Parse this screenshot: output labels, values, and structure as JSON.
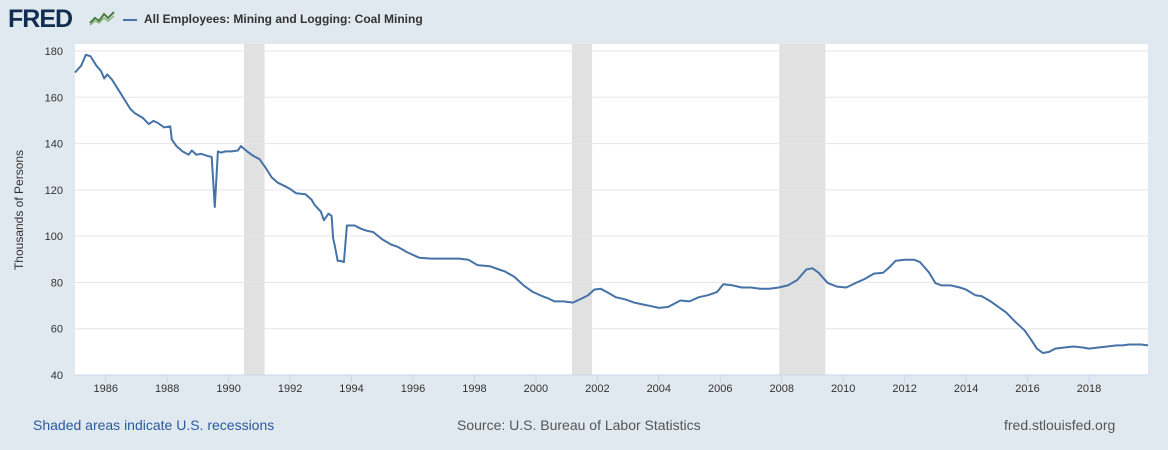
{
  "header": {
    "logo_text": "FRED",
    "series_title": "All Employees: Mining and Logging: Coal Mining"
  },
  "footer": {
    "recession_note": "Shaded areas indicate U.S. recessions",
    "source": "Source: U.S. Bureau of Labor Statistics",
    "site": "fred.stlouisfed.org"
  },
  "colors": {
    "line": "#4572a7",
    "recession": "#e1e1e1",
    "background": "#e1e9f0",
    "plot_bg": "#ffffff",
    "grid": "#e6e6e6"
  },
  "chart_data": {
    "type": "line",
    "title": "All Employees: Mining and Logging: Coal Mining",
    "xlabel": "",
    "ylabel": "Thousands of Persons",
    "xlim": [
      1985.0,
      2019.92
    ],
    "ylim": [
      40,
      180
    ],
    "y_ticks": [
      40,
      60,
      80,
      100,
      120,
      140,
      160,
      180
    ],
    "x_ticks": [
      1986,
      1988,
      1990,
      1992,
      1994,
      1996,
      1998,
      2000,
      2002,
      2004,
      2006,
      2008,
      2010,
      2012,
      2014,
      2016,
      2018
    ],
    "grid": true,
    "recessions": [
      [
        1990.5,
        1991.17
      ],
      [
        2001.17,
        2001.83
      ],
      [
        2007.92,
        2009.42
      ]
    ],
    "series": [
      {
        "name": "All Employees: Mining and Logging: Coal Mining",
        "x": [
          1985.0,
          1985.2,
          1985.35,
          1985.5,
          1985.7,
          1985.85,
          1985.95,
          1986.05,
          1986.2,
          1986.4,
          1986.6,
          1986.8,
          1986.95,
          1987.2,
          1987.4,
          1987.55,
          1987.7,
          1987.9,
          1988.1,
          1988.15,
          1988.3,
          1988.5,
          1988.7,
          1988.8,
          1988.95,
          1989.1,
          1989.3,
          1989.45,
          1989.55,
          1989.65,
          1989.75,
          1989.9,
          1990.1,
          1990.3,
          1990.4,
          1990.6,
          1990.8,
          1991.0,
          1991.2,
          1991.4,
          1991.6,
          1991.8,
          1992.0,
          1992.2,
          1992.5,
          1992.7,
          1992.8,
          1993.0,
          1993.1,
          1993.25,
          1993.35,
          1993.4,
          1993.45,
          1993.55,
          1993.65,
          1993.75,
          1993.85,
          1993.95,
          1994.1,
          1994.3,
          1994.5,
          1994.7,
          1995.0,
          1995.3,
          1995.5,
          1995.8,
          1996.2,
          1996.6,
          1997.0,
          1997.5,
          1997.8,
          1998.1,
          1998.5,
          1998.8,
          1999.0,
          1999.3,
          1999.6,
          1999.9,
          2000.2,
          2000.4,
          2000.6,
          2000.9,
          2001.2,
          2001.5,
          2001.7,
          2001.9,
          2002.1,
          2002.3,
          2002.6,
          2002.9,
          2003.2,
          2003.5,
          2003.7,
          2004.0,
          2004.3,
          2004.5,
          2004.7,
          2005.0,
          2005.3,
          2005.6,
          2005.9,
          2006.1,
          2006.4,
          2006.7,
          2007.0,
          2007.3,
          2007.6,
          2007.9,
          2008.2,
          2008.5,
          2008.8,
          2009.0,
          2009.2,
          2009.5,
          2009.8,
          2010.1,
          2010.4,
          2010.7,
          2011.0,
          2011.3,
          2011.5,
          2011.7,
          2012.0,
          2012.3,
          2012.5,
          2012.8,
          2013.0,
          2013.2,
          2013.5,
          2013.8,
          2014.0,
          2014.3,
          2014.5,
          2014.8,
          2015.0,
          2015.3,
          2015.6,
          2015.9,
          2016.1,
          2016.3,
          2016.5,
          2016.7,
          2016.9,
          2017.2,
          2017.5,
          2017.8,
          2018.0,
          2018.3,
          2018.6,
          2018.9,
          2019.1,
          2019.3,
          2019.5,
          2019.7,
          2019.92
        ],
        "values": [
          170.7,
          173.6,
          178.3,
          177.8,
          173.6,
          171.3,
          168.1,
          169.9,
          167.7,
          163.5,
          159.2,
          155.0,
          153.1,
          151.2,
          148.4,
          149.8,
          148.9,
          147.0,
          147.4,
          141.7,
          138.9,
          136.6,
          135.2,
          137.0,
          135.2,
          135.6,
          134.7,
          134.2,
          112.6,
          136.6,
          136.1,
          136.6,
          136.6,
          137.0,
          138.9,
          136.6,
          134.7,
          133.3,
          129.6,
          125.4,
          123.1,
          121.8,
          120.4,
          118.5,
          118.1,
          115.7,
          113.4,
          110.6,
          106.9,
          109.7,
          108.8,
          99.1,
          96.3,
          89.3,
          89.3,
          88.8,
          104.6,
          104.6,
          104.6,
          103.2,
          102.3,
          101.8,
          98.6,
          96.3,
          95.4,
          93.1,
          90.7,
          90.3,
          90.3,
          90.3,
          89.8,
          87.5,
          87.0,
          85.6,
          84.7,
          82.4,
          78.7,
          75.9,
          74.1,
          73.1,
          71.8,
          71.8,
          71.3,
          73.1,
          74.5,
          76.9,
          77.3,
          75.9,
          73.6,
          72.7,
          71.3,
          70.4,
          69.9,
          69.0,
          69.4,
          70.8,
          72.2,
          71.8,
          73.6,
          74.5,
          75.9,
          79.2,
          78.7,
          77.8,
          77.8,
          77.3,
          77.3,
          77.8,
          78.7,
          81.0,
          85.6,
          86.1,
          84.2,
          79.7,
          78.2,
          77.8,
          79.7,
          81.5,
          83.8,
          84.2,
          86.5,
          89.3,
          89.8,
          89.8,
          88.8,
          84.2,
          79.7,
          78.7,
          78.7,
          77.8,
          76.9,
          74.5,
          74.1,
          71.8,
          69.9,
          67.1,
          63.0,
          59.3,
          55.6,
          51.4,
          49.5,
          50.0,
          51.4,
          51.9,
          52.3,
          51.9,
          51.4,
          51.9,
          52.3,
          52.8,
          52.8,
          53.2,
          53.2,
          53.2,
          52.8
        ]
      }
    ]
  }
}
